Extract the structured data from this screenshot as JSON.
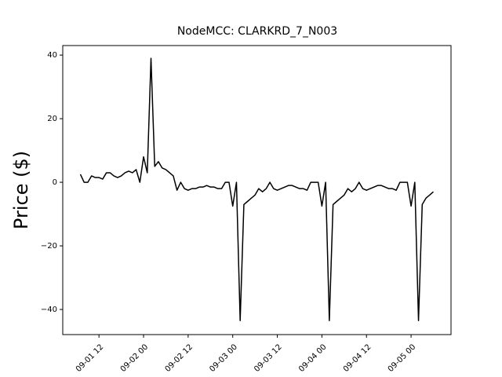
{
  "chart_data": {
    "type": "line",
    "title": "NodeMCC: CLARKRD_7_N003",
    "y_label": "Price ($)",
    "x": [
      "09-01 07",
      "09-01 08",
      "09-01 09",
      "09-01 10",
      "09-01 11",
      "09-01 12",
      "09-01 13",
      "09-01 14",
      "09-01 15",
      "09-01 16",
      "09-01 17",
      "09-01 18",
      "09-01 19",
      "09-01 20",
      "09-01 21",
      "09-01 22",
      "09-01 23",
      "09-02 00",
      "09-02 01",
      "09-02 02",
      "09-02 03",
      "09-02 04",
      "09-02 05",
      "09-02 06",
      "09-02 07",
      "09-02 08",
      "09-02 09",
      "09-02 10",
      "09-02 11",
      "09-02 12",
      "09-02 13",
      "09-02 14",
      "09-02 15",
      "09-02 16",
      "09-02 17",
      "09-02 18",
      "09-02 19",
      "09-02 20",
      "09-02 21",
      "09-02 22",
      "09-02 23",
      "09-03 00",
      "09-03 01",
      "09-03 02",
      "09-03 03",
      "09-03 04",
      "09-03 05",
      "09-03 06",
      "09-03 07",
      "09-03 08",
      "09-03 09",
      "09-03 10",
      "09-03 11",
      "09-03 12",
      "09-03 13",
      "09-03 14",
      "09-03 15",
      "09-03 16",
      "09-03 17",
      "09-03 18",
      "09-03 19",
      "09-03 20",
      "09-03 21",
      "09-03 22",
      "09-03 23",
      "09-04 00",
      "09-04 01",
      "09-04 02",
      "09-04 03",
      "09-04 04",
      "09-04 05",
      "09-04 06",
      "09-04 07",
      "09-04 08",
      "09-04 09",
      "09-04 10",
      "09-04 11",
      "09-04 12",
      "09-04 13",
      "09-04 14",
      "09-04 15",
      "09-04 16",
      "09-04 17",
      "09-04 18",
      "09-04 19",
      "09-04 20",
      "09-04 21",
      "09-04 22",
      "09-04 23",
      "09-05 00",
      "09-05 01",
      "09-05 02",
      "09-05 03",
      "09-05 04",
      "09-05 05",
      "09-05 06"
    ],
    "series": [
      {
        "color": "#000000",
        "values": [
          2.5,
          0,
          0,
          2,
          1.5,
          1.5,
          1,
          3,
          3,
          2,
          1.5,
          2,
          3,
          3.5,
          3,
          4,
          0,
          8,
          3,
          39,
          5,
          6.5,
          4.5,
          4,
          3,
          2,
          -2.5,
          0,
          -2,
          -2.5,
          -2,
          -2,
          -1.5,
          -1.5,
          -1,
          -1.5,
          -1.5,
          -2,
          -2,
          0,
          0,
          -7.5,
          0,
          -43.5,
          -7,
          -6,
          -5,
          -4,
          -2,
          -3,
          -2,
          0,
          -2,
          -2.5,
          -2,
          -1.5,
          -1,
          -1,
          -1.5,
          -2,
          -2,
          -2.5,
          0,
          0,
          0,
          -7.5,
          0,
          -43.5,
          -7,
          -6,
          -5,
          -4,
          -2,
          -3,
          -2,
          0,
          -2,
          -2.5,
          -2,
          -1.5,
          -1,
          -1,
          -1.5,
          -2,
          -2,
          -2.5,
          0,
          0,
          0,
          -7.5,
          0,
          -43.5,
          -7,
          -5,
          -4,
          -3
        ]
      }
    ],
    "xlim": [
      "09-01 02:15",
      "09-05 10:45"
    ],
    "xticks": [
      "09-01 12",
      "09-02 00",
      "09-02 12",
      "09-03 00",
      "09-03 12",
      "09-04 00",
      "09-04 12",
      "09-05 00"
    ],
    "ylim": [
      -47.9,
      43
    ],
    "yticks": [
      {
        "value": -40,
        "label": "−40"
      },
      {
        "value": -20,
        "label": "−20"
      },
      0,
      20,
      40
    ]
  }
}
